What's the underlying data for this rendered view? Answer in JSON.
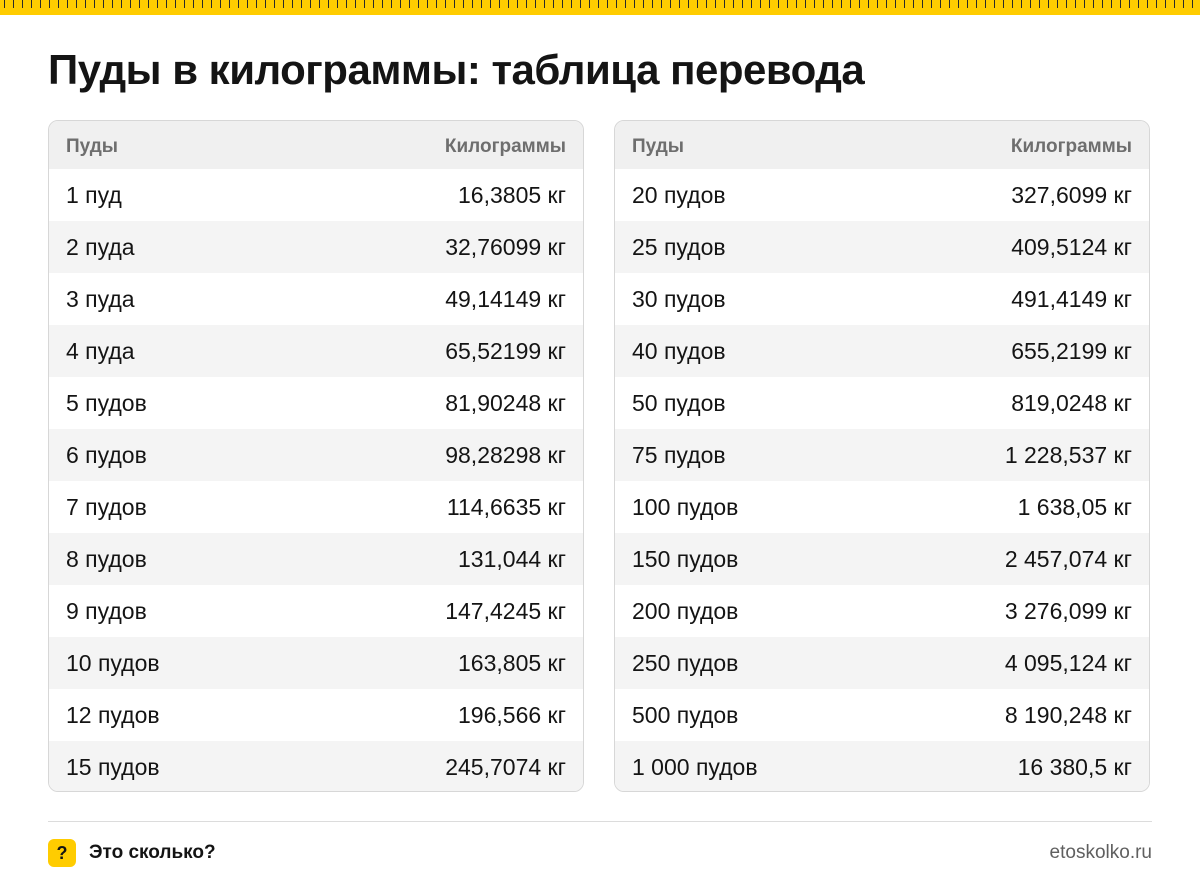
{
  "title": "Пуды в килограммы: таблица перевода",
  "tables": [
    {
      "header": {
        "col1": "Пуды",
        "col2": "Килограммы"
      },
      "rows": [
        {
          "label": "1 пуд",
          "value": "16,3805 кг"
        },
        {
          "label": "2 пуда",
          "value": "32,76099 кг"
        },
        {
          "label": "3 пуда",
          "value": "49,14149 кг"
        },
        {
          "label": "4 пуда",
          "value": "65,52199 кг"
        },
        {
          "label": "5 пудов",
          "value": "81,90248 кг"
        },
        {
          "label": "6 пудов",
          "value": "98,28298 кг"
        },
        {
          "label": "7 пудов",
          "value": "114,6635 кг"
        },
        {
          "label": "8 пудов",
          "value": "131,044 кг"
        },
        {
          "label": "9 пудов",
          "value": "147,4245 кг"
        },
        {
          "label": "10 пудов",
          "value": "163,805 кг"
        },
        {
          "label": "12 пудов",
          "value": "196,566 кг"
        },
        {
          "label": "15 пудов",
          "value": "245,7074 кг"
        }
      ]
    },
    {
      "header": {
        "col1": "Пуды",
        "col2": "Килограммы"
      },
      "rows": [
        {
          "label": "20 пудов",
          "value": "327,6099 кг"
        },
        {
          "label": "25 пудов",
          "value": "409,5124 кг"
        },
        {
          "label": "30 пудов",
          "value": "491,4149 кг"
        },
        {
          "label": "40 пудов",
          "value": "655,2199 кг"
        },
        {
          "label": "50 пудов",
          "value": "819,0248 кг"
        },
        {
          "label": "75 пудов",
          "value": "1 228,537 кг"
        },
        {
          "label": "100 пудов",
          "value": "1 638,05 кг"
        },
        {
          "label": "150 пудов",
          "value": "2 457,074 кг"
        },
        {
          "label": "200 пудов",
          "value": "3 276,099 кг"
        },
        {
          "label": "250 пудов",
          "value": "4 095,124 кг"
        },
        {
          "label": "500 пудов",
          "value": "8 190,248 кг"
        },
        {
          "label": "1 000 пудов",
          "value": "16 380,5 кг"
        }
      ]
    }
  ],
  "footer": {
    "badge": "?",
    "brand": "Это сколько?",
    "site": "etoskolko.ru"
  },
  "colors": {
    "accent": "#ffcc00",
    "text": "#141414",
    "header_bg": "#f0f0f0",
    "stripe_bg": "#f4f4f4",
    "border": "#d7d7d7",
    "muted": "#6e6e6e"
  }
}
